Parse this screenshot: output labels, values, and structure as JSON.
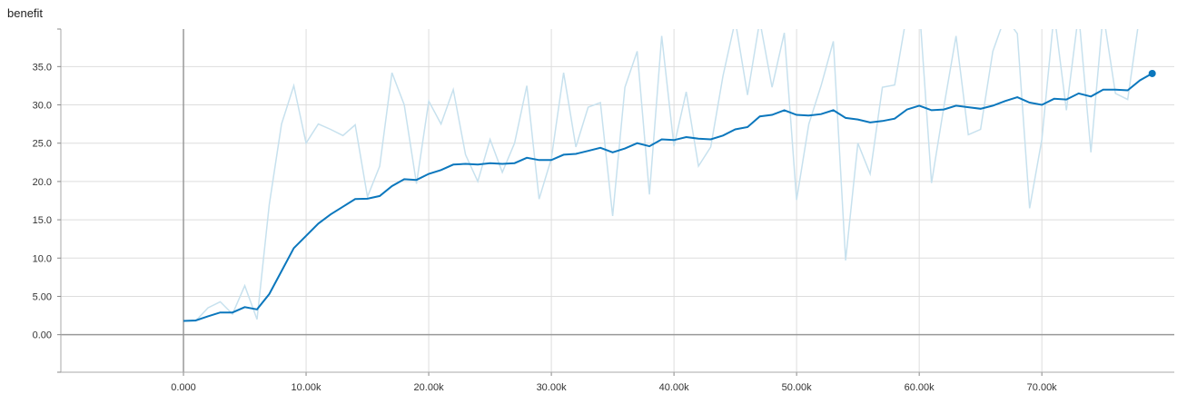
{
  "chart_title": "benefit",
  "colors": {
    "smoothed": "#0b77bd",
    "raw": "#c7e1ee",
    "grid": "#dddddd",
    "zero_axis": "#999999",
    "tick_text": "#333333"
  },
  "chart_data": {
    "type": "line",
    "title": "benefit",
    "xlabel": "",
    "ylabel": "",
    "xlim": [
      -10000,
      80800
    ],
    "ylim": [
      -4.9,
      39.9
    ],
    "grid": true,
    "x_ticks": [
      0,
      10000,
      20000,
      30000,
      40000,
      50000,
      60000,
      70000
    ],
    "x_tick_labels": [
      "0.000",
      "10.00k",
      "20.00k",
      "30.00k",
      "40.00k",
      "50.00k",
      "60.00k",
      "70.00k"
    ],
    "y_ticks": [
      0,
      5,
      10,
      15,
      20,
      25,
      30,
      35
    ],
    "y_tick_labels": [
      "0.00",
      "5.00",
      "10.0",
      "15.0",
      "20.0",
      "25.0",
      "30.0",
      "35.0"
    ],
    "series": [
      {
        "role": "raw",
        "x": [
          0,
          1000,
          2000,
          3000,
          4000,
          5000,
          6000,
          7000,
          8000,
          9000,
          10000,
          11000,
          12000,
          13000,
          14000,
          15000,
          16000,
          17000,
          18000,
          19000,
          20000,
          21000,
          22000,
          23000,
          24000,
          25000,
          26000,
          27000,
          28000,
          29000,
          30000,
          31000,
          32000,
          33000,
          34000,
          35000,
          36000,
          37000,
          38000,
          39000,
          40000,
          41000,
          42000,
          43000,
          44000,
          45000,
          46000,
          47000,
          48000,
          49000,
          50000,
          51000,
          52000,
          53000,
          54000,
          55000,
          56000,
          57000,
          58000,
          59000,
          60000,
          61000,
          62000,
          63000,
          64000,
          65000,
          66000,
          67000,
          68000,
          69000,
          70000,
          71000,
          72000,
          73000,
          74000,
          75000,
          76000,
          77000,
          78000
        ],
        "values": [
          1.8,
          1.8,
          3.5,
          4.3,
          2.7,
          6.4,
          2.0,
          17.0,
          27.5,
          32.5,
          25.0,
          27.5,
          26.8,
          26.0,
          27.4,
          18.0,
          22.0,
          34.2,
          30.0,
          19.7,
          30.5,
          27.5,
          32.0,
          23.5,
          20.0,
          25.5,
          21.2,
          25.0,
          32.5,
          17.7,
          23.0,
          34.2,
          24.5,
          29.7,
          30.3,
          15.5,
          32.3,
          37.0,
          18.3,
          39.0,
          24.6,
          31.7,
          22.0,
          24.5,
          33.8,
          41.0,
          31.3,
          41.0,
          32.3,
          39.4,
          17.6,
          27.5,
          32.5,
          38.3,
          9.7,
          25.0,
          21.0,
          32.3,
          32.6,
          42.0,
          43.0,
          19.8,
          29.7,
          39.0,
          26.1,
          26.8,
          37.0,
          41.5,
          39.3,
          16.5,
          25.5,
          42.0,
          29.3,
          42.0,
          23.8,
          42.0,
          31.5,
          30.7,
          42.0
        ]
      },
      {
        "role": "smoothed",
        "x": [
          0,
          1000,
          2000,
          3000,
          4000,
          5000,
          6000,
          7000,
          8000,
          9000,
          10000,
          11000,
          12000,
          13000,
          14000,
          15000,
          16000,
          17000,
          18000,
          19000,
          20000,
          21000,
          22000,
          23000,
          24000,
          25000,
          26000,
          27000,
          28000,
          29000,
          30000,
          31000,
          32000,
          33000,
          34000,
          35000,
          36000,
          37000,
          38000,
          39000,
          40000,
          41000,
          42000,
          43000,
          44000,
          45000,
          46000,
          47000,
          48000,
          49000,
          50000,
          51000,
          52000,
          53000,
          54000,
          55000,
          56000,
          57000,
          58000,
          59000,
          60000,
          61000,
          62000,
          63000,
          64000,
          65000,
          66000,
          67000,
          68000,
          69000,
          70000,
          71000,
          72000,
          73000,
          74000,
          75000,
          76000,
          77000,
          78000,
          79000
        ],
        "values": [
          1.8,
          1.85,
          2.4,
          2.9,
          2.9,
          3.6,
          3.3,
          5.3,
          8.3,
          11.3,
          12.9,
          14.5,
          15.7,
          16.7,
          17.7,
          17.75,
          18.1,
          19.4,
          20.3,
          20.2,
          21.0,
          21.5,
          22.2,
          22.3,
          22.2,
          22.4,
          22.3,
          22.4,
          23.1,
          22.8,
          22.8,
          23.5,
          23.6,
          24.0,
          24.4,
          23.8,
          24.3,
          25.0,
          24.6,
          25.5,
          25.4,
          25.8,
          25.6,
          25.5,
          26.0,
          26.8,
          27.1,
          28.5,
          28.7,
          29.3,
          28.7,
          28.6,
          28.8,
          29.3,
          28.3,
          28.1,
          27.7,
          27.9,
          28.2,
          29.4,
          29.9,
          29.3,
          29.4,
          29.9,
          29.7,
          29.5,
          29.9,
          30.5,
          31.0,
          30.3,
          30.0,
          30.8,
          30.7,
          31.5,
          31.1,
          32.0,
          32.0,
          31.9,
          33.2,
          34.1
        ]
      }
    ]
  }
}
